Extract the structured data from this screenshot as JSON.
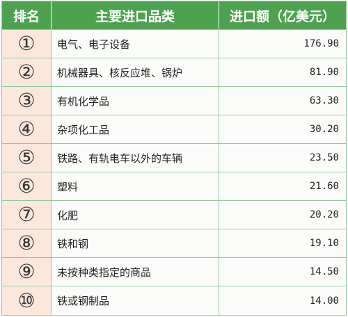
{
  "header": {
    "rank": "排名",
    "category": "主要进口品类",
    "amount": "进口额（亿美元）"
  },
  "rows": [
    {
      "rank": "①",
      "category": "电气、电子设备",
      "amount": "176.90"
    },
    {
      "rank": "②",
      "category": "机械器具、核反应堆、锅炉",
      "amount": "81.90"
    },
    {
      "rank": "③",
      "category": "有机化学品",
      "amount": "63.30"
    },
    {
      "rank": "④",
      "category": "杂项化工品",
      "amount": "30.20"
    },
    {
      "rank": "⑤",
      "category": "铁路、有轨电车以外的车辆",
      "amount": "23.50"
    },
    {
      "rank": "⑥",
      "category": "塑料",
      "amount": "21.60"
    },
    {
      "rank": "⑦",
      "category": "化肥",
      "amount": "20.20"
    },
    {
      "rank": "⑧",
      "category": "铁和钢",
      "amount": "19.10"
    },
    {
      "rank": "⑨",
      "category": "未按种类指定的商品",
      "amount": "14.50"
    },
    {
      "rank": "⑩",
      "category": "铁或钢制品",
      "amount": "14.00"
    }
  ],
  "colors": {
    "header_bg": "#4ea24f",
    "rank_cell_bg": "#fbe7dc",
    "row_bg": "#fbfcf9",
    "border": "#8fc99c"
  }
}
